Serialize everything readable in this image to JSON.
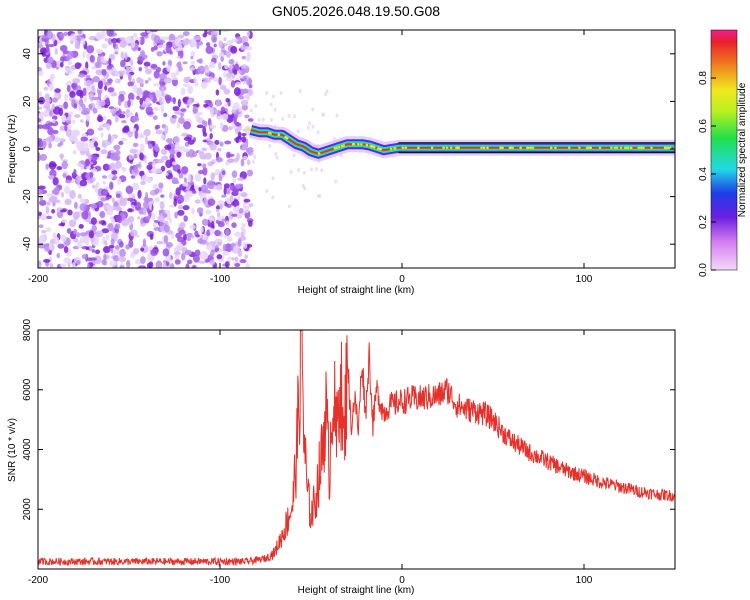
{
  "title": "GN05.2026.048.19.50.G08",
  "chart_data": [
    {
      "type": "heatmap",
      "xlabel": "Height of straight line (km)",
      "ylabel": "Frequency (Hz)",
      "xlim": [
        -200,
        150
      ],
      "ylim": [
        -50,
        50
      ],
      "xticks": [
        "-200",
        "-100",
        "0",
        "100"
      ],
      "xtick_values": [
        -200,
        -100,
        0,
        100
      ],
      "yticks": [
        "-40",
        "-20",
        "0",
        "20",
        "40"
      ],
      "ytick_values": [
        -40,
        -20,
        0,
        20,
        40
      ],
      "noise_region": {
        "x_range": [
          -200,
          -83
        ],
        "y_range": [
          -50,
          50
        ]
      },
      "ridge": {
        "x": [
          -83,
          -78,
          -74,
          -70,
          -66,
          -62,
          -58,
          -54,
          -50,
          -46,
          -42,
          -38,
          -34,
          -30,
          -26,
          -22,
          -18,
          -14,
          -10,
          -6,
          -2,
          2,
          10,
          30,
          60,
          100,
          150
        ],
        "y": [
          8,
          7,
          7,
          6,
          6,
          4,
          2,
          1,
          -1,
          -2,
          -1,
          0,
          1,
          2,
          2,
          2,
          1.5,
          0.5,
          -0.5,
          0,
          0.5,
          0.5,
          0.5,
          0.5,
          0.5,
          0.5,
          0.5
        ]
      },
      "colorbar": {
        "label": "Normalized spectral amplitude",
        "ticks": [
          "0.0",
          "0.2",
          "0.4",
          "0.6",
          "0.8"
        ],
        "tick_values": [
          0.0,
          0.2,
          0.4,
          0.6,
          0.8
        ],
        "range": [
          0,
          1
        ]
      }
    },
    {
      "type": "line",
      "xlabel": "Height of straight line (km)",
      "ylabel": "SNR (10 * v/v)",
      "xlim": [
        -200,
        150
      ],
      "ylim": [
        0,
        8000
      ],
      "xticks": [
        "-200",
        "-100",
        "0",
        "100"
      ],
      "xtick_values": [
        -200,
        -100,
        0,
        100
      ],
      "yticks": [
        "2000",
        "4000",
        "6000",
        "8000"
      ],
      "ytick_values": [
        2000,
        4000,
        6000,
        8000
      ],
      "series": [
        {
          "color": "#e8302a",
          "x": [
            -200,
            -150,
            -100,
            -85,
            -75,
            -70,
            -66,
            -63,
            -60,
            -58,
            -56,
            -55,
            -54,
            -52,
            -50,
            -48,
            -46,
            -44,
            -42,
            -40,
            -38,
            -36,
            -34,
            -32,
            -30,
            -28,
            -26,
            -24,
            -22,
            -20,
            -18,
            -16,
            -14,
            -12,
            -10,
            -8,
            -6,
            -4,
            -2,
            0,
            5,
            10,
            15,
            20,
            25,
            30,
            35,
            40,
            45,
            50,
            55,
            60,
            70,
            80,
            90,
            100,
            110,
            120,
            130,
            140,
            150
          ],
          "y": [
            250,
            250,
            250,
            250,
            350,
            550,
            1100,
            1600,
            2200,
            3800,
            6500,
            8000,
            4500,
            2500,
            1800,
            2200,
            3000,
            3800,
            5500,
            3200,
            6200,
            4200,
            6800,
            3900,
            7200,
            4700,
            5800,
            4600,
            7000,
            5200,
            7200,
            4800,
            6000,
            5600,
            5200,
            5400,
            5500,
            5500,
            5600,
            5600,
            5700,
            5700,
            5750,
            5800,
            6000,
            5500,
            5350,
            5300,
            5200,
            5000,
            4600,
            4300,
            3900,
            3600,
            3300,
            3100,
            2900,
            2750,
            2600,
            2500,
            2450
          ]
        }
      ]
    }
  ],
  "colors": {
    "line": "#e8302a",
    "ridge_hot": "#e8302a",
    "ridge_mid": "#30e070",
    "ridge_edge": "#7b1fd9",
    "noise": "#7b1fd9"
  }
}
